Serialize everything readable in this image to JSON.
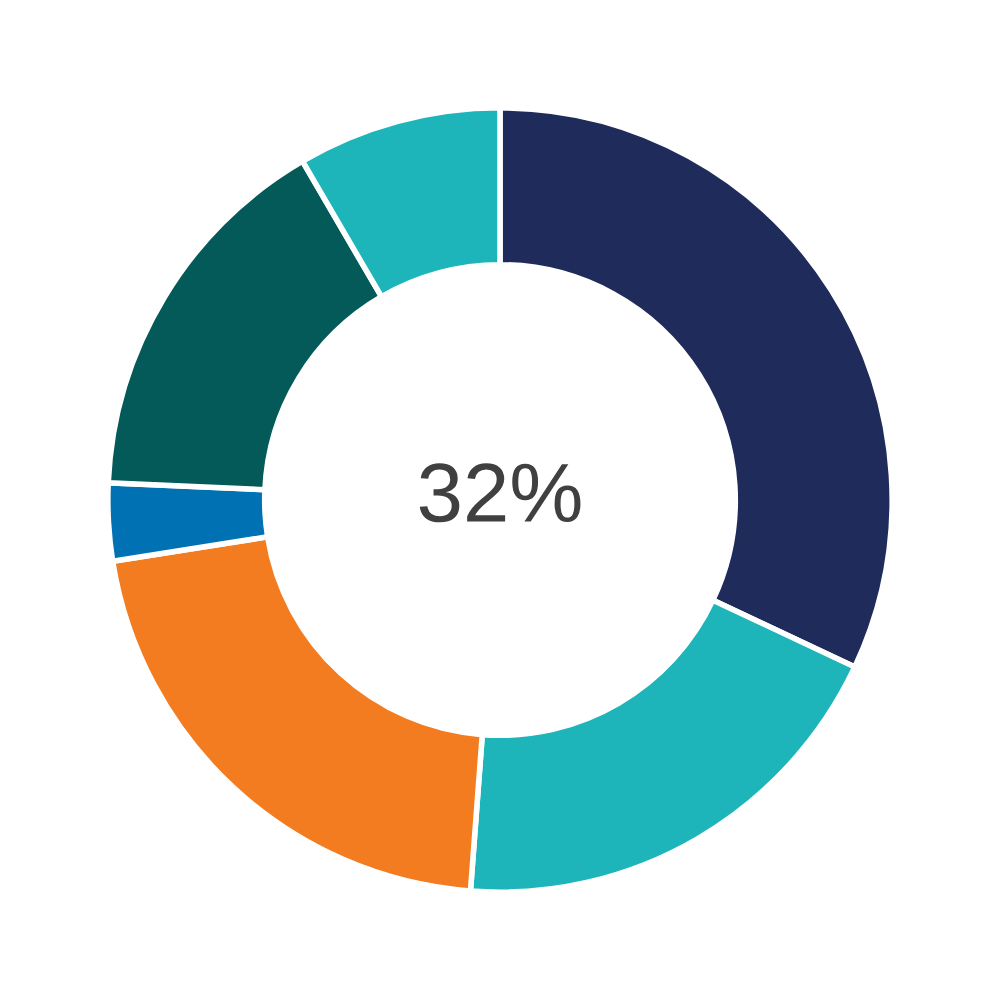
{
  "chart_data": {
    "type": "donut",
    "categories": [
      null,
      null,
      null,
      null,
      null,
      null
    ],
    "values": [
      32,
      19.2,
      21.3,
      3.2,
      15.9,
      8.4
    ],
    "colors": [
      "#1e2b5b",
      "#1db5ba",
      "#f37c20",
      "#0072b4",
      "#045a58",
      "#1db5ba"
    ],
    "annotations": [
      "32%"
    ]
  }
}
